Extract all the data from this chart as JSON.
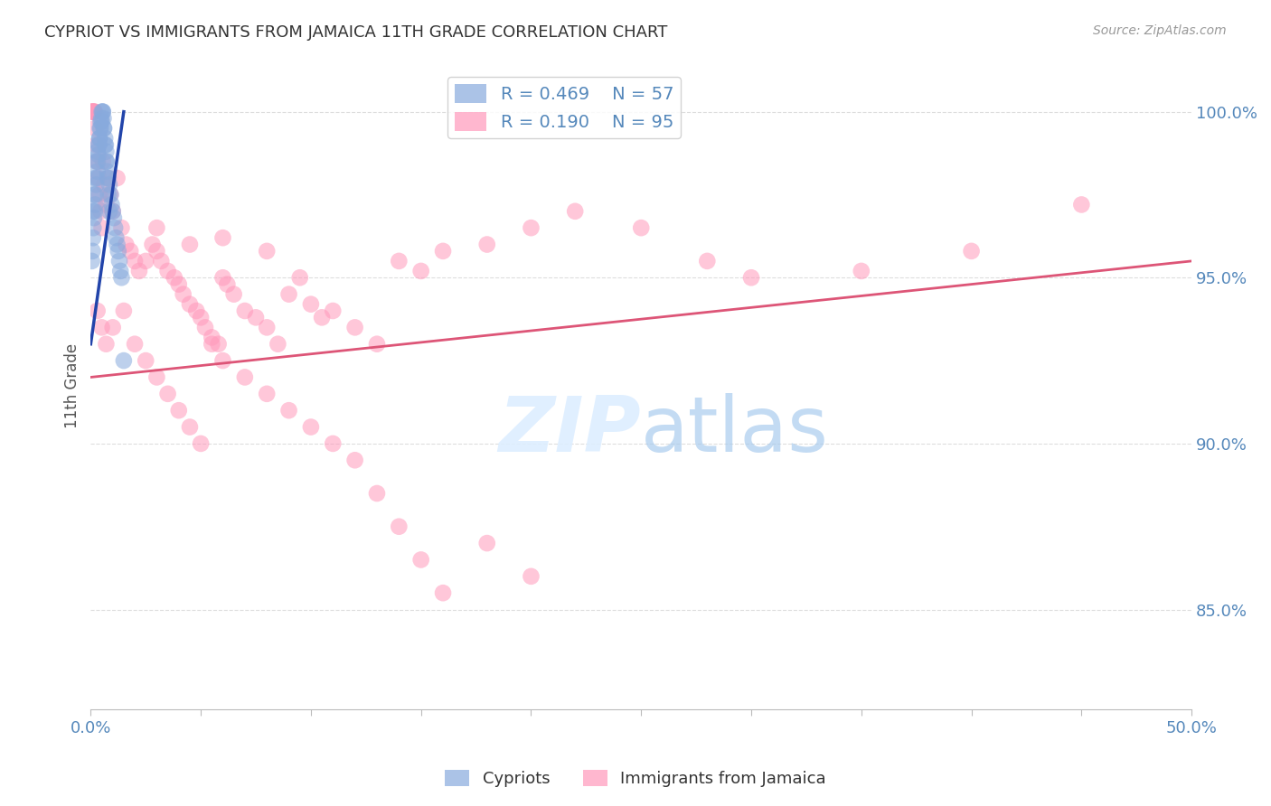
{
  "title": "CYPRIOT VS IMMIGRANTS FROM JAMAICA 11TH GRADE CORRELATION CHART",
  "source": "Source: ZipAtlas.com",
  "ylabel": "11th Grade",
  "xmin": 0.0,
  "xmax": 50.0,
  "ymin": 82.0,
  "ymax": 101.5,
  "yticks": [
    85.0,
    90.0,
    95.0,
    100.0
  ],
  "ytick_labels": [
    "85.0%",
    "90.0%",
    "95.0%",
    "100.0%"
  ],
  "legend_blue_r": "R = 0.469",
  "legend_blue_n": "N = 57",
  "legend_pink_r": "R = 0.190",
  "legend_pink_n": "N = 95",
  "blue_color": "#88AADD",
  "pink_color": "#FF99BB",
  "blue_line_color": "#2244AA",
  "pink_line_color": "#DD5577",
  "grid_color": "#DDDDDD",
  "title_color": "#333333",
  "axis_color": "#5588BB",
  "watermark_color": "#DDEEFF",
  "blue_x": [
    0.05,
    0.08,
    0.1,
    0.12,
    0.15,
    0.18,
    0.2,
    0.22,
    0.25,
    0.28,
    0.3,
    0.32,
    0.35,
    0.38,
    0.4,
    0.42,
    0.45,
    0.48,
    0.5,
    0.55,
    0.58,
    0.6,
    0.65,
    0.68,
    0.7,
    0.72,
    0.75,
    0.8,
    0.85,
    0.9,
    0.95,
    1.0,
    1.05,
    1.1,
    1.15,
    1.2,
    1.25,
    1.3,
    1.35,
    1.4,
    0.1,
    0.15,
    0.2,
    0.25,
    0.3,
    0.35,
    0.4,
    0.45,
    0.5,
    0.55,
    0.6,
    0.65,
    0.7,
    0.75,
    0.8,
    0.85,
    1.5
  ],
  "blue_y": [
    95.5,
    95.8,
    96.2,
    96.5,
    96.8,
    97.0,
    97.2,
    97.5,
    97.8,
    98.0,
    98.2,
    98.5,
    98.7,
    99.0,
    99.2,
    99.5,
    99.7,
    99.8,
    100.0,
    100.0,
    99.8,
    99.5,
    99.2,
    99.0,
    98.8,
    98.5,
    98.2,
    98.0,
    97.8,
    97.5,
    97.2,
    97.0,
    96.8,
    96.5,
    96.2,
    96.0,
    95.8,
    95.5,
    95.2,
    95.0,
    97.0,
    97.5,
    98.0,
    98.5,
    98.8,
    99.0,
    99.2,
    99.5,
    99.7,
    100.0,
    99.5,
    99.0,
    98.5,
    98.0,
    97.5,
    97.0,
    92.5
  ],
  "pink_x": [
    0.05,
    0.08,
    0.1,
    0.12,
    0.15,
    0.18,
    0.2,
    0.25,
    0.3,
    0.35,
    0.4,
    0.45,
    0.5,
    0.55,
    0.6,
    0.7,
    0.8,
    0.9,
    1.0,
    1.2,
    1.4,
    1.6,
    1.8,
    2.0,
    2.2,
    2.5,
    2.8,
    3.0,
    3.2,
    3.5,
    3.8,
    4.0,
    4.2,
    4.5,
    4.8,
    5.0,
    5.2,
    5.5,
    5.8,
    6.0,
    6.2,
    6.5,
    7.0,
    7.5,
    8.0,
    8.5,
    9.0,
    9.5,
    10.0,
    10.5,
    11.0,
    12.0,
    13.0,
    14.0,
    15.0,
    16.0,
    18.0,
    20.0,
    22.0,
    25.0,
    28.0,
    30.0,
    35.0,
    40.0,
    45.0,
    0.3,
    0.5,
    0.7,
    1.0,
    1.5,
    2.0,
    2.5,
    3.0,
    3.5,
    4.0,
    4.5,
    5.0,
    5.5,
    6.0,
    7.0,
    8.0,
    9.0,
    10.0,
    11.0,
    12.0,
    13.0,
    14.0,
    15.0,
    16.0,
    18.0,
    20.0,
    3.0,
    4.5,
    6.0,
    8.0
  ],
  "pink_y": [
    100.0,
    100.0,
    100.0,
    100.0,
    100.0,
    100.0,
    99.5,
    99.0,
    98.5,
    98.0,
    97.5,
    97.0,
    96.5,
    98.5,
    97.8,
    97.2,
    98.0,
    97.5,
    97.0,
    98.0,
    96.5,
    96.0,
    95.8,
    95.5,
    95.2,
    95.5,
    96.0,
    95.8,
    95.5,
    95.2,
    95.0,
    94.8,
    94.5,
    94.2,
    94.0,
    93.8,
    93.5,
    93.2,
    93.0,
    95.0,
    94.8,
    94.5,
    94.0,
    93.8,
    93.5,
    93.0,
    94.5,
    95.0,
    94.2,
    93.8,
    94.0,
    93.5,
    93.0,
    95.5,
    95.2,
    95.8,
    96.0,
    96.5,
    97.0,
    96.5,
    95.5,
    95.0,
    95.2,
    95.8,
    97.2,
    94.0,
    93.5,
    93.0,
    93.5,
    94.0,
    93.0,
    92.5,
    92.0,
    91.5,
    91.0,
    90.5,
    90.0,
    93.0,
    92.5,
    92.0,
    91.5,
    91.0,
    90.5,
    90.0,
    89.5,
    88.5,
    87.5,
    86.5,
    85.5,
    87.0,
    86.0,
    96.5,
    96.0,
    96.2,
    95.8
  ]
}
